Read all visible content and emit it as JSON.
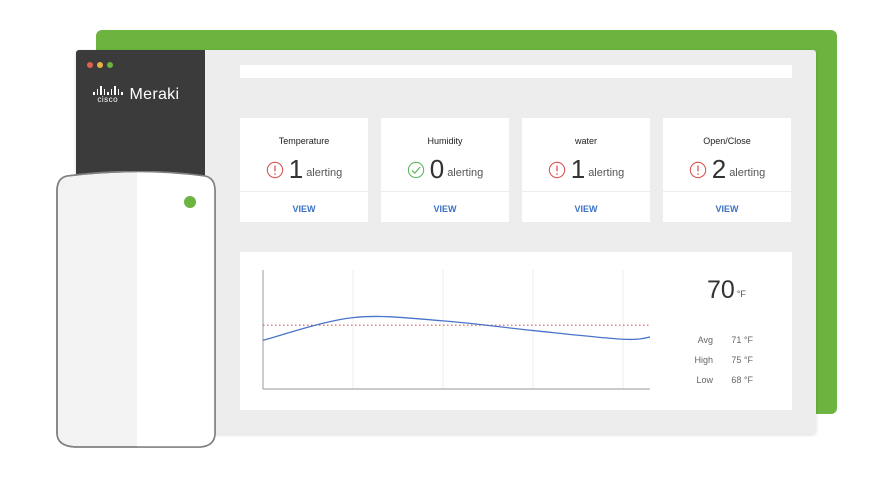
{
  "colors": {
    "brand_green": "#6cb33f",
    "sidebar_bg": "#3b3b3b",
    "alert_red": "#d9534f",
    "ok_green": "#5cb85c",
    "link_blue": "#3b73c5",
    "chart_line": "#4a74c9",
    "threshold_line": "#d9534f"
  },
  "window": {
    "dots": [
      "#e0614f",
      "#e8b33f",
      "#6cb33f"
    ]
  },
  "brand": {
    "cisco": "cisco",
    "product": "Meraki"
  },
  "cards": [
    {
      "title": "Temperature",
      "count": "1",
      "label": "alerting",
      "status": "alert",
      "icon": "exclamation-circle-icon",
      "action": "VIEW"
    },
    {
      "title": "Humidity",
      "count": "0",
      "label": "alerting",
      "status": "ok",
      "icon": "check-circle-icon",
      "action": "VIEW"
    },
    {
      "title": "water",
      "count": "1",
      "label": "alerting",
      "status": "alert",
      "icon": "exclamation-circle-icon",
      "action": "VIEW"
    },
    {
      "title": "Open/Close",
      "count": "2",
      "label": "alerting",
      "status": "alert",
      "icon": "exclamation-circle-icon",
      "action": "VIEW"
    }
  ],
  "temperature": {
    "current": "70",
    "unit": "°F",
    "stats": [
      {
        "label": "Avg",
        "value": "71 °F"
      },
      {
        "label": "High",
        "value": "75 °F"
      },
      {
        "label": "Low",
        "value": "68 °F"
      }
    ]
  },
  "chart_data": {
    "type": "line",
    "grid": "vertical",
    "title": "",
    "xlabel": "",
    "ylabel": "",
    "series": [
      {
        "points": [
          [
            0,
            68.5
          ],
          [
            1,
            70.6
          ],
          [
            2,
            70.3
          ],
          [
            3,
            69.4
          ],
          [
            4,
            68.6
          ],
          [
            4.3,
            68.8
          ]
        ]
      }
    ],
    "threshold": 69.9,
    "ylim": [
      64,
      75
    ],
    "xlim": [
      0,
      4.3
    ]
  },
  "device": {
    "icon": "sensor-device-icon",
    "led_color": "#6cb33f"
  }
}
